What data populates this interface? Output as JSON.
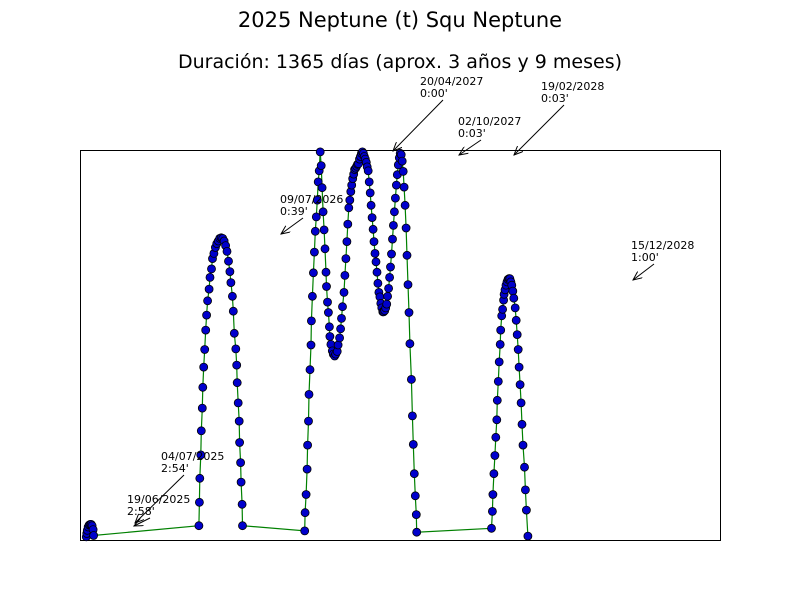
{
  "chart_data": {
    "type": "line",
    "title": "2025 Neptune (t) Squ Neptune",
    "subtitle": "Duración: 1365 días (aprox. 3 años y 9 meses)",
    "x_axis": "date",
    "xlim": [
      "2025-06-06",
      "2029-01-15"
    ],
    "ylim": [
      0,
      60
    ],
    "grid": false,
    "series": [
      {
        "line_color": "#008000",
        "marker_color": "#0000cc",
        "points": [
          [
            "2025-06-19",
            0.5
          ],
          [
            "2025-06-20",
            1.0
          ],
          [
            "2025-06-21",
            1.5
          ],
          [
            "2025-06-23",
            2.0
          ],
          [
            "2025-06-25",
            2.3
          ],
          [
            "2025-06-27",
            2.4
          ],
          [
            "2025-06-29",
            2.4
          ],
          [
            "2025-07-01",
            2.2
          ],
          [
            "2025-07-03",
            1.6
          ],
          [
            "2025-07-04",
            0.7
          ],
          [
            "2026-02-06",
            2.2
          ],
          [
            "2026-02-07",
            5.8
          ],
          [
            "2026-02-08",
            9.5
          ],
          [
            "2026-02-10",
            13.1
          ],
          [
            "2026-02-11",
            16.8
          ],
          [
            "2026-02-13",
            20.3
          ],
          [
            "2026-02-14",
            23.5
          ],
          [
            "2026-02-16",
            26.6
          ],
          [
            "2026-02-18",
            29.3
          ],
          [
            "2026-02-20",
            32.3
          ],
          [
            "2026-02-22",
            34.6
          ],
          [
            "2026-02-24",
            36.8
          ],
          [
            "2026-02-27",
            38.6
          ],
          [
            "2026-03-01",
            40.4
          ],
          [
            "2026-03-04",
            41.7
          ],
          [
            "2026-03-06",
            43.3
          ],
          [
            "2026-03-09",
            44.1
          ],
          [
            "2026-03-12",
            45.0
          ],
          [
            "2026-03-15",
            45.6
          ],
          [
            "2026-03-18",
            46.0
          ],
          [
            "2026-03-21",
            46.4
          ],
          [
            "2026-03-24",
            46.5
          ],
          [
            "2026-03-27",
            46.4
          ],
          [
            "2026-03-30",
            46.0
          ],
          [
            "2026-04-02",
            45.3
          ],
          [
            "2026-04-05",
            44.4
          ],
          [
            "2026-04-08",
            42.9
          ],
          [
            "2026-04-11",
            41.3
          ],
          [
            "2026-04-13",
            39.6
          ],
          [
            "2026-04-16",
            37.5
          ],
          [
            "2026-04-18",
            35.2
          ],
          [
            "2026-04-20",
            31.8
          ],
          [
            "2026-04-23",
            29.4
          ],
          [
            "2026-04-25",
            26.9
          ],
          [
            "2026-04-26",
            24.2
          ],
          [
            "2026-04-28",
            21.1
          ],
          [
            "2026-04-30",
            18.3
          ],
          [
            "2026-05-01",
            15.0
          ],
          [
            "2026-05-03",
            11.9
          ],
          [
            "2026-05-04",
            8.9
          ],
          [
            "2026-05-06",
            5.5
          ],
          [
            "2026-05-07",
            2.2
          ],
          [
            "2026-09-12",
            1.4
          ],
          [
            "2026-09-13",
            4.2
          ],
          [
            "2026-09-15",
            7.0
          ],
          [
            "2026-09-17",
            10.9
          ],
          [
            "2026-09-18",
            14.6
          ],
          [
            "2026-09-20",
            18.3
          ],
          [
            "2026-09-21",
            22.4
          ],
          [
            "2026-09-23",
            26.2
          ],
          [
            "2026-09-25",
            30.0
          ],
          [
            "2026-09-26",
            33.7
          ],
          [
            "2026-09-28",
            37.5
          ],
          [
            "2026-09-30",
            41.1
          ],
          [
            "2026-10-02",
            44.3
          ],
          [
            "2026-10-04",
            47.5
          ],
          [
            "2026-10-06",
            49.7
          ],
          [
            "2026-10-08",
            52.3
          ],
          [
            "2026-10-10",
            55.1
          ],
          [
            "2026-10-12",
            56.8
          ],
          [
            "2026-10-14",
            59.7
          ],
          [
            "2026-10-16",
            57.6
          ],
          [
            "2026-10-18",
            54.2
          ],
          [
            "2026-10-20",
            50.5
          ],
          [
            "2026-10-22",
            47.7
          ],
          [
            "2026-10-24",
            44.8
          ],
          [
            "2026-10-26",
            41.2
          ],
          [
            "2026-10-27",
            39.0
          ],
          [
            "2026-10-29",
            36.6
          ],
          [
            "2026-10-31",
            35.0
          ],
          [
            "2026-11-02",
            32.8
          ],
          [
            "2026-11-03",
            31.3
          ],
          [
            "2026-11-05",
            30.1
          ],
          [
            "2026-11-08",
            29.1
          ],
          [
            "2026-11-10",
            28.6
          ],
          [
            "2026-11-13",
            28.3
          ],
          [
            "2026-11-15",
            28.6
          ],
          [
            "2026-11-18",
            29.0
          ],
          [
            "2026-11-20",
            30.0
          ],
          [
            "2026-11-23",
            31.1
          ],
          [
            "2026-11-25",
            32.5
          ],
          [
            "2026-11-27",
            34.1
          ],
          [
            "2026-11-29",
            35.9
          ],
          [
            "2026-12-02",
            38.1
          ],
          [
            "2026-12-04",
            40.7
          ],
          [
            "2026-12-06",
            43.3
          ],
          [
            "2026-12-08",
            45.9
          ],
          [
            "2026-12-10",
            48.6
          ],
          [
            "2026-12-12",
            51.1
          ],
          [
            "2026-12-14",
            52.3
          ],
          [
            "2026-12-16",
            53.6
          ],
          [
            "2026-12-18",
            54.6
          ],
          [
            "2026-12-20",
            55.6
          ],
          [
            "2026-12-22",
            56.3
          ],
          [
            "2026-12-24",
            57.0
          ],
          [
            "2026-12-26",
            57.2
          ],
          [
            "2026-12-28",
            57.5
          ],
          [
            "2026-12-30",
            57.8
          ],
          [
            "2027-01-01",
            57.9
          ],
          [
            "2027-01-03",
            58.6
          ],
          [
            "2027-01-05",
            59.0
          ],
          [
            "2027-01-07",
            59.5
          ],
          [
            "2027-01-09",
            59.7
          ],
          [
            "2027-01-11",
            59.5
          ],
          [
            "2027-01-13",
            59.0
          ],
          [
            "2027-01-15",
            58.6
          ],
          [
            "2027-01-17",
            58.1
          ],
          [
            "2027-01-19",
            57.4
          ],
          [
            "2027-01-21",
            56.8
          ],
          [
            "2027-01-23",
            55.1
          ],
          [
            "2027-01-25",
            53.4
          ],
          [
            "2027-01-27",
            51.5
          ],
          [
            "2027-01-29",
            49.6
          ],
          [
            "2027-01-31",
            47.8
          ],
          [
            "2027-02-02",
            45.9
          ],
          [
            "2027-02-04",
            44.1
          ],
          [
            "2027-02-06",
            42.8
          ],
          [
            "2027-02-08",
            41.2
          ],
          [
            "2027-02-10",
            39.5
          ],
          [
            "2027-02-12",
            38.1
          ],
          [
            "2027-02-14",
            37.4
          ],
          [
            "2027-02-16",
            36.4
          ],
          [
            "2027-02-18",
            35.7
          ],
          [
            "2027-02-20",
            35.1
          ],
          [
            "2027-02-22",
            35.1
          ],
          [
            "2027-02-24",
            35.3
          ],
          [
            "2027-02-26",
            35.7
          ],
          [
            "2027-02-28",
            36.3
          ],
          [
            "2027-03-02",
            37.5
          ],
          [
            "2027-03-04",
            38.7
          ],
          [
            "2027-03-06",
            40.4
          ],
          [
            "2027-03-08",
            42.0
          ],
          [
            "2027-03-10",
            44.0
          ],
          [
            "2027-03-12",
            46.3
          ],
          [
            "2027-03-14",
            48.4
          ],
          [
            "2027-03-16",
            50.5
          ],
          [
            "2027-03-18",
            52.6
          ],
          [
            "2027-03-20",
            54.6
          ],
          [
            "2027-03-22",
            56.2
          ],
          [
            "2027-03-24",
            57.7
          ],
          [
            "2027-03-26",
            58.8
          ],
          [
            "2027-03-28",
            59.5
          ],
          [
            "2027-03-30",
            59.3
          ],
          [
            "2027-04-01",
            58.3
          ],
          [
            "2027-04-03",
            56.7
          ],
          [
            "2027-04-05",
            54.3
          ],
          [
            "2027-04-07",
            51.5
          ],
          [
            "2027-04-09",
            48.0
          ],
          [
            "2027-04-11",
            43.8
          ],
          [
            "2027-04-13",
            39.3
          ],
          [
            "2027-04-15",
            35.0
          ],
          [
            "2027-04-17",
            30.2
          ],
          [
            "2027-04-20",
            24.7
          ],
          [
            "2027-04-22",
            19.1
          ],
          [
            "2027-04-24",
            14.7
          ],
          [
            "2027-04-26",
            10.2
          ],
          [
            "2027-04-28",
            6.8
          ],
          [
            "2027-04-30",
            3.9
          ],
          [
            "2027-05-01",
            1.2
          ],
          [
            "2027-10-02",
            1.8
          ],
          [
            "2027-10-04",
            4.4
          ],
          [
            "2027-10-05",
            7.0
          ],
          [
            "2027-10-07",
            10.2
          ],
          [
            "2027-10-09",
            13.0
          ],
          [
            "2027-10-11",
            15.8
          ],
          [
            "2027-10-13",
            18.5
          ],
          [
            "2027-10-14",
            21.5
          ],
          [
            "2027-10-16",
            24.4
          ],
          [
            "2027-10-18",
            27.4
          ],
          [
            "2027-10-20",
            30.1
          ],
          [
            "2027-10-21",
            32.3
          ],
          [
            "2027-10-23",
            34.5
          ],
          [
            "2027-10-25",
            35.5
          ],
          [
            "2027-10-27",
            36.9
          ],
          [
            "2027-10-28",
            37.8
          ],
          [
            "2027-10-30",
            38.5
          ],
          [
            "2027-11-01",
            39.2
          ],
          [
            "2027-11-03",
            39.7
          ],
          [
            "2027-11-05",
            40.1
          ],
          [
            "2027-11-07",
            40.2
          ],
          [
            "2027-11-09",
            40.2
          ],
          [
            "2027-11-11",
            39.7
          ],
          [
            "2027-11-13",
            39.2
          ],
          [
            "2027-11-15",
            38.3
          ],
          [
            "2027-11-17",
            37.2
          ],
          [
            "2027-11-20",
            35.7
          ],
          [
            "2027-11-22",
            33.8
          ],
          [
            "2027-11-24",
            31.6
          ],
          [
            "2027-11-26",
            29.3
          ],
          [
            "2027-11-28",
            26.6
          ],
          [
            "2027-11-30",
            23.9
          ],
          [
            "2027-12-02",
            21.1
          ],
          [
            "2027-12-04",
            17.8
          ],
          [
            "2027-12-06",
            14.6
          ],
          [
            "2027-12-09",
            11.2
          ],
          [
            "2027-12-11",
            7.7
          ],
          [
            "2027-12-13",
            4.6
          ],
          [
            "2027-12-16",
            0.6
          ]
        ]
      }
    ],
    "annotations": [
      {
        "date": "19/06/2025",
        "value": "2:58'"
      },
      {
        "date": "04/07/2025",
        "value": "2:54'"
      },
      {
        "date": "09/07/2026",
        "value": "0:39'"
      },
      {
        "date": "20/04/2027",
        "value": "0:00'"
      },
      {
        "date": "02/10/2027",
        "value": "0:03'"
      },
      {
        "date": "19/02/2028",
        "value": "0:03'"
      },
      {
        "date": "15/12/2028",
        "value": "1:00'"
      }
    ]
  }
}
